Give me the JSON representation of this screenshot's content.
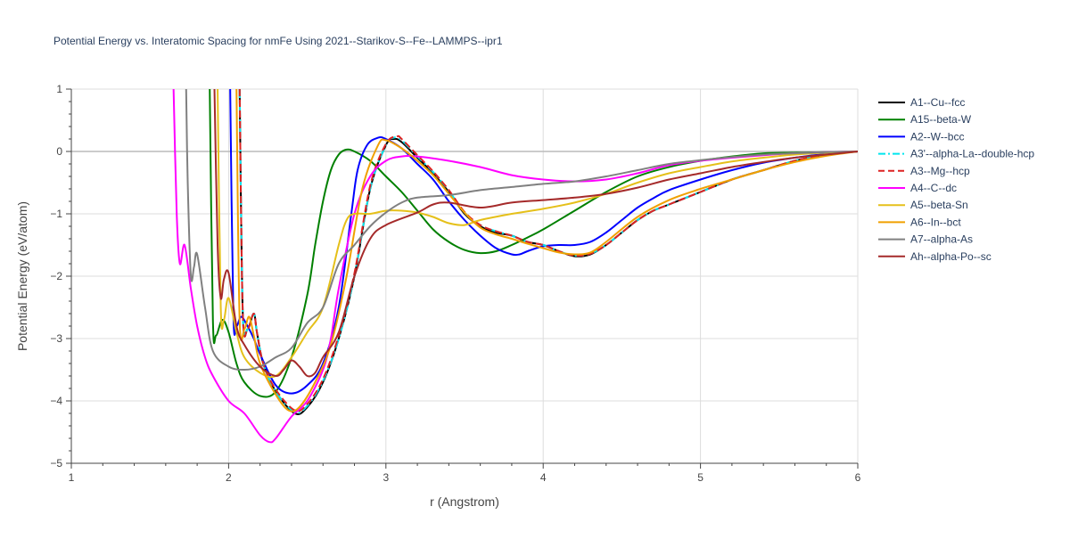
{
  "chart_data": {
    "type": "line",
    "title": "Potential Energy vs. Interatomic Spacing for nmFe Using 2021--Starikov-S--Fe--LAMMPS--ipr1",
    "xlabel": "r (Angstrom)",
    "ylabel": "Potential Energy (eV/atom)",
    "xlim": [
      1,
      6
    ],
    "ylim": [
      -5,
      1
    ],
    "xticks": [
      1,
      2,
      3,
      4,
      5,
      6
    ],
    "yticks": [
      1,
      0,
      -1,
      -2,
      -3,
      -4,
      -5
    ],
    "xtick_labels": [
      "1",
      "2",
      "3",
      "4",
      "5",
      "6"
    ],
    "ytick_labels": [
      "1",
      "0",
      "−1",
      "−2",
      "−3",
      "−4",
      "−5"
    ],
    "grid": true,
    "legend_position": "right",
    "series": [
      {
        "name": "A1--Cu--fcc",
        "color": "#000000",
        "dash": "solid",
        "x": [
          2.07,
          2.09,
          2.12,
          2.16,
          2.18,
          2.22,
          2.3,
          2.42,
          2.5,
          2.6,
          2.7,
          2.8,
          2.9,
          3.0,
          3.05,
          3.1,
          3.2,
          3.3,
          3.4,
          3.5,
          3.6,
          3.7,
          3.8,
          3.9,
          4.0,
          4.1,
          4.2,
          4.3,
          4.4,
          4.5,
          4.6,
          4.7,
          4.8,
          5.0,
          5.2,
          5.4,
          5.6,
          5.8,
          6.0
        ],
        "y": [
          1.0,
          -2.6,
          -2.85,
          -2.6,
          -2.9,
          -3.4,
          -3.85,
          -4.2,
          -4.1,
          -3.7,
          -3.0,
          -2.0,
          -0.6,
          0.1,
          0.2,
          0.15,
          -0.1,
          -0.35,
          -0.65,
          -1.0,
          -1.2,
          -1.3,
          -1.35,
          -1.45,
          -1.5,
          -1.6,
          -1.68,
          -1.65,
          -1.5,
          -1.3,
          -1.1,
          -0.95,
          -0.85,
          -0.65,
          -0.45,
          -0.3,
          -0.15,
          -0.05,
          0.0
        ]
      },
      {
        "name": "A15--beta-W",
        "color": "#008000",
        "dash": "solid",
        "x": [
          1.88,
          1.9,
          1.92,
          1.96,
          2.0,
          2.05,
          2.1,
          2.2,
          2.3,
          2.4,
          2.5,
          2.55,
          2.6,
          2.65,
          2.7,
          2.75,
          2.8,
          2.9,
          3.0,
          3.1,
          3.2,
          3.3,
          3.4,
          3.5,
          3.6,
          3.7,
          3.8,
          3.9,
          4.0,
          4.2,
          4.4,
          4.6,
          4.8,
          5.0,
          5.2,
          5.4,
          5.6,
          5.8,
          6.0
        ],
        "y": [
          1.0,
          -2.7,
          -2.95,
          -2.7,
          -2.9,
          -3.4,
          -3.7,
          -3.92,
          -3.85,
          -3.3,
          -2.3,
          -1.5,
          -0.8,
          -0.3,
          -0.05,
          0.03,
          0.0,
          -0.15,
          -0.4,
          -0.65,
          -0.95,
          -1.25,
          -1.45,
          -1.58,
          -1.63,
          -1.6,
          -1.5,
          -1.38,
          -1.25,
          -0.95,
          -0.65,
          -0.4,
          -0.25,
          -0.15,
          -0.08,
          -0.03,
          -0.02,
          -0.01,
          0.0
        ]
      },
      {
        "name": "A2--W--bcc",
        "color": "#0000ff",
        "dash": "solid",
        "x": [
          2.01,
          2.03,
          2.05,
          2.08,
          2.12,
          2.16,
          2.2,
          2.3,
          2.4,
          2.5,
          2.6,
          2.7,
          2.78,
          2.82,
          2.88,
          2.95,
          3.0,
          3.1,
          3.2,
          3.3,
          3.4,
          3.5,
          3.6,
          3.7,
          3.8,
          3.85,
          3.9,
          4.0,
          4.1,
          4.2,
          4.3,
          4.4,
          4.5,
          4.6,
          4.7,
          4.8,
          5.0,
          5.2,
          5.4,
          5.6,
          5.8,
          6.0
        ],
        "y": [
          1.0,
          -2.6,
          -2.8,
          -2.65,
          -2.8,
          -3.0,
          -3.25,
          -3.75,
          -3.88,
          -3.75,
          -3.4,
          -2.5,
          -1.0,
          -0.3,
          0.1,
          0.22,
          0.2,
          0.05,
          -0.2,
          -0.45,
          -0.8,
          -1.1,
          -1.35,
          -1.55,
          -1.65,
          -1.65,
          -1.6,
          -1.52,
          -1.5,
          -1.5,
          -1.45,
          -1.3,
          -1.1,
          -0.9,
          -0.75,
          -0.62,
          -0.45,
          -0.3,
          -0.18,
          -0.1,
          -0.04,
          0.0
        ]
      },
      {
        "name": "A3'--alpha-La--double-hcp",
        "color": "#00e5ee",
        "dash": "dashdot",
        "x": [
          2.07,
          2.09,
          2.12,
          2.16,
          2.18,
          2.22,
          2.3,
          2.42,
          2.5,
          2.6,
          2.7,
          2.8,
          2.9,
          3.0,
          3.05,
          3.1,
          3.2,
          3.3,
          3.4,
          3.5,
          3.6,
          3.7,
          3.8,
          3.9,
          4.0,
          4.1,
          4.2,
          4.3,
          4.4,
          4.5,
          4.6,
          4.7,
          4.8,
          5.0,
          5.2,
          5.4,
          5.6,
          5.8,
          6.0
        ],
        "y": [
          1.0,
          -2.6,
          -2.85,
          -2.6,
          -2.9,
          -3.4,
          -3.85,
          -4.18,
          -4.08,
          -3.68,
          -3.0,
          -2.0,
          -0.6,
          0.1,
          0.22,
          0.18,
          -0.08,
          -0.33,
          -0.63,
          -0.98,
          -1.18,
          -1.28,
          -1.35,
          -1.45,
          -1.5,
          -1.6,
          -1.67,
          -1.64,
          -1.5,
          -1.3,
          -1.1,
          -0.95,
          -0.85,
          -0.65,
          -0.45,
          -0.3,
          -0.15,
          -0.05,
          0.0
        ]
      },
      {
        "name": "A3--Mg--hcp",
        "color": "#dd2222",
        "dash": "dash",
        "x": [
          2.07,
          2.09,
          2.12,
          2.16,
          2.18,
          2.22,
          2.3,
          2.42,
          2.5,
          2.6,
          2.7,
          2.8,
          2.9,
          3.0,
          3.07,
          3.1,
          3.2,
          3.3,
          3.4,
          3.5,
          3.6,
          3.7,
          3.8,
          3.9,
          4.0,
          4.1,
          4.2,
          4.3,
          4.4,
          4.5,
          4.6,
          4.7,
          4.8,
          5.0,
          5.2,
          5.4,
          5.6,
          5.8,
          6.0
        ],
        "y": [
          1.0,
          -2.6,
          -2.85,
          -2.6,
          -2.9,
          -3.4,
          -3.82,
          -4.15,
          -4.05,
          -3.65,
          -2.95,
          -1.95,
          -0.55,
          0.12,
          0.24,
          0.2,
          -0.06,
          -0.32,
          -0.62,
          -0.97,
          -1.18,
          -1.28,
          -1.35,
          -1.45,
          -1.5,
          -1.6,
          -1.67,
          -1.64,
          -1.5,
          -1.3,
          -1.1,
          -0.95,
          -0.85,
          -0.65,
          -0.45,
          -0.3,
          -0.15,
          -0.05,
          0.0
        ]
      },
      {
        "name": "A4--C--dc",
        "color": "#ff00ff",
        "dash": "solid",
        "x": [
          1.65,
          1.67,
          1.69,
          1.72,
          1.76,
          1.8,
          1.85,
          1.9,
          2.0,
          2.1,
          2.2,
          2.26,
          2.3,
          2.4,
          2.5,
          2.6,
          2.65,
          2.7,
          2.8,
          2.9,
          3.0,
          3.1,
          3.2,
          3.4,
          3.6,
          3.8,
          4.0,
          4.2,
          4.4,
          4.6,
          4.8,
          5.0,
          5.2,
          5.4,
          5.6,
          5.8,
          6.0
        ],
        "y": [
          1.0,
          -1.0,
          -1.8,
          -1.5,
          -2.2,
          -2.8,
          -3.3,
          -3.6,
          -4.0,
          -4.2,
          -4.55,
          -4.66,
          -4.6,
          -4.25,
          -4.0,
          -3.5,
          -3.0,
          -2.2,
          -1.0,
          -0.4,
          -0.15,
          -0.08,
          -0.08,
          -0.15,
          -0.25,
          -0.38,
          -0.45,
          -0.48,
          -0.45,
          -0.35,
          -0.22,
          -0.15,
          -0.1,
          -0.06,
          -0.03,
          -0.01,
          0.0
        ]
      },
      {
        "name": "A5--beta-Sn",
        "color": "#e5c01a",
        "dash": "solid",
        "x": [
          1.93,
          1.95,
          1.97,
          2.0,
          2.05,
          2.1,
          2.2,
          2.3,
          2.4,
          2.5,
          2.6,
          2.7,
          2.75,
          2.8,
          2.9,
          3.0,
          3.1,
          3.2,
          3.3,
          3.4,
          3.5,
          3.6,
          3.8,
          4.0,
          4.2,
          4.4,
          4.6,
          4.8,
          5.0,
          5.2,
          5.4,
          5.6,
          5.8,
          6.0
        ],
        "y": [
          1.0,
          -2.5,
          -2.7,
          -2.35,
          -2.9,
          -3.3,
          -3.55,
          -3.6,
          -3.3,
          -2.9,
          -2.5,
          -1.5,
          -1.1,
          -1.0,
          -1.0,
          -0.95,
          -0.95,
          -0.98,
          -1.05,
          -1.15,
          -1.18,
          -1.1,
          -1.0,
          -0.92,
          -0.82,
          -0.68,
          -0.5,
          -0.35,
          -0.25,
          -0.16,
          -0.1,
          -0.05,
          -0.02,
          0.0
        ]
      },
      {
        "name": "A6--In--bct",
        "color": "#f0a000",
        "dash": "solid",
        "x": [
          2.05,
          2.07,
          2.1,
          2.13,
          2.16,
          2.2,
          2.3,
          2.38,
          2.45,
          2.55,
          2.65,
          2.75,
          2.85,
          2.95,
          3.0,
          3.1,
          3.2,
          3.3,
          3.4,
          3.5,
          3.6,
          3.7,
          3.8,
          3.9,
          4.0,
          4.1,
          4.2,
          4.3,
          4.4,
          4.6,
          4.8,
          5.0,
          5.2,
          5.4,
          5.6,
          5.8,
          6.0
        ],
        "y": [
          1.0,
          -2.7,
          -2.85,
          -2.65,
          -2.95,
          -3.4,
          -3.9,
          -4.15,
          -4.1,
          -3.7,
          -3.1,
          -2.0,
          -0.6,
          0.1,
          0.18,
          0.05,
          -0.15,
          -0.38,
          -0.68,
          -0.98,
          -1.22,
          -1.33,
          -1.4,
          -1.48,
          -1.55,
          -1.62,
          -1.65,
          -1.62,
          -1.45,
          -1.05,
          -0.78,
          -0.6,
          -0.45,
          -0.3,
          -0.17,
          -0.07,
          0.0
        ]
      },
      {
        "name": "A7--alpha-As",
        "color": "#808080",
        "dash": "solid",
        "x": [
          1.73,
          1.74,
          1.76,
          1.78,
          1.8,
          1.85,
          1.9,
          2.0,
          2.1,
          2.2,
          2.3,
          2.4,
          2.5,
          2.6,
          2.7,
          2.8,
          2.9,
          3.0,
          3.1,
          3.2,
          3.4,
          3.6,
          3.8,
          4.0,
          4.2,
          4.4,
          4.6,
          4.8,
          5.0,
          5.2,
          5.4,
          5.6,
          5.8,
          6.0
        ],
        "y": [
          1.0,
          -0.5,
          -2.0,
          -1.85,
          -1.65,
          -2.5,
          -3.2,
          -3.45,
          -3.5,
          -3.45,
          -3.3,
          -3.15,
          -2.75,
          -2.5,
          -1.8,
          -1.5,
          -1.2,
          -0.98,
          -0.82,
          -0.74,
          -0.7,
          -0.62,
          -0.57,
          -0.52,
          -0.48,
          -0.4,
          -0.3,
          -0.2,
          -0.14,
          -0.09,
          -0.05,
          -0.03,
          -0.01,
          0.0
        ]
      },
      {
        "name": "Ah--alpha-Po--sc",
        "color": "#a52a2a",
        "dash": "solid",
        "x": [
          1.91,
          1.93,
          1.95,
          1.97,
          2.0,
          2.05,
          2.1,
          2.2,
          2.3,
          2.35,
          2.4,
          2.45,
          2.5,
          2.55,
          2.6,
          2.7,
          2.8,
          2.9,
          3.0,
          3.2,
          3.3,
          3.4,
          3.6,
          3.8,
          4.0,
          4.2,
          4.4,
          4.6,
          4.8,
          5.0,
          5.2,
          5.4,
          5.6,
          5.8,
          6.0
        ],
        "y": [
          1.0,
          -1.5,
          -2.35,
          -2.05,
          -1.95,
          -2.8,
          -3.1,
          -3.45,
          -3.6,
          -3.5,
          -3.35,
          -3.45,
          -3.6,
          -3.55,
          -3.3,
          -2.9,
          -2.0,
          -1.4,
          -1.18,
          -0.98,
          -0.85,
          -0.82,
          -0.9,
          -0.82,
          -0.78,
          -0.74,
          -0.68,
          -0.58,
          -0.45,
          -0.35,
          -0.25,
          -0.17,
          -0.1,
          -0.05,
          0.0
        ]
      }
    ]
  }
}
